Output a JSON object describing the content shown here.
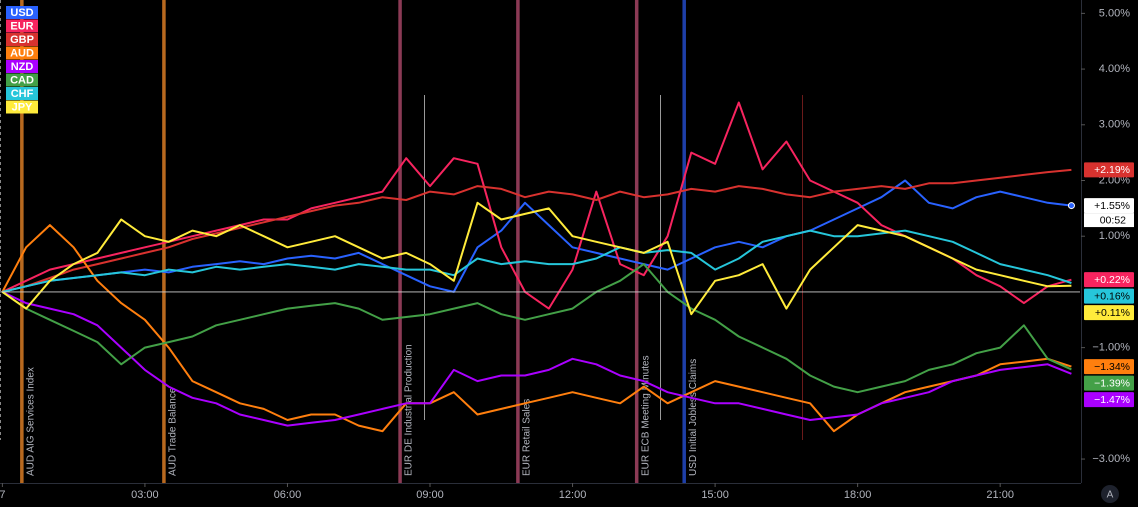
{
  "chart_data": {
    "type": "line",
    "legend": "top-left",
    "grid": false,
    "x": [
      0,
      0.5,
      1,
      1.5,
      2,
      2.5,
      3,
      3.5,
      4,
      4.5,
      5,
      5.5,
      6,
      6.5,
      7,
      7.5,
      8,
      8.5,
      9,
      9.5,
      10,
      10.5,
      11,
      11.5,
      12,
      12.5,
      13,
      13.5,
      14,
      14.5,
      15,
      15.5,
      16,
      16.5,
      17,
      17.5,
      18,
      18.5,
      19,
      19.5,
      20,
      20.5,
      21,
      21.5,
      22,
      22.5
    ],
    "xlim": [
      -0.05,
      22.68
    ],
    "xticks": [
      {
        "value": 0,
        "label": "7"
      },
      {
        "value": 3,
        "label": "03:00"
      },
      {
        "value": 6,
        "label": "06:00"
      },
      {
        "value": 9,
        "label": "09:00"
      },
      {
        "value": 12,
        "label": "12:00"
      },
      {
        "value": 15,
        "label": "15:00"
      },
      {
        "value": 18,
        "label": "18:00"
      },
      {
        "value": 21,
        "label": "21:00"
      }
    ],
    "ylim": [
      -3.43,
      5.24
    ],
    "yticks": [
      {
        "value": 5,
        "label": "5.00%"
      },
      {
        "value": 4,
        "label": "4.00%"
      },
      {
        "value": 3,
        "label": "3.00%"
      },
      {
        "value": 2,
        "label": "2.00%"
      },
      {
        "value": 1,
        "label": "1.00%"
      },
      {
        "value": -1,
        "label": "−1.00%"
      },
      {
        "value": -3,
        "label": "−3.00%"
      }
    ],
    "series": [
      {
        "name": "USD",
        "color": "#2962ff",
        "end_label": "+1.55%",
        "countdown": "00:52",
        "values": [
          0,
          0.1,
          0.2,
          0.25,
          0.3,
          0.35,
          0.4,
          0.35,
          0.45,
          0.5,
          0.55,
          0.5,
          0.6,
          0.65,
          0.6,
          0.7,
          0.5,
          0.3,
          0.1,
          0,
          0.8,
          1.1,
          1.6,
          1.2,
          0.8,
          0.7,
          0.6,
          0.5,
          0.4,
          0.6,
          0.8,
          0.9,
          0.8,
          1.0,
          1.1,
          1.3,
          1.5,
          1.7,
          2.0,
          1.6,
          1.5,
          1.7,
          1.8,
          1.7,
          1.6,
          1.55
        ]
      },
      {
        "name": "EUR",
        "color": "#f7245f",
        "end_label": "+0.22%",
        "values": [
          0,
          0.2,
          0.4,
          0.5,
          0.6,
          0.7,
          0.8,
          0.9,
          1.0,
          1.1,
          1.2,
          1.3,
          1.3,
          1.5,
          1.6,
          1.7,
          1.8,
          2.4,
          1.9,
          2.4,
          2.3,
          0.8,
          0,
          -0.3,
          0.4,
          1.8,
          0.5,
          0.3,
          1.0,
          2.5,
          2.3,
          3.4,
          2.2,
          2.7,
          2.0,
          1.8,
          1.6,
          1.2,
          1.0,
          0.8,
          0.6,
          0.3,
          0.1,
          -0.2,
          0.1,
          0.22
        ]
      },
      {
        "name": "GBP",
        "color": "#d8322f",
        "end_label": "+2.19%",
        "values": [
          0,
          0.1,
          0.25,
          0.4,
          0.5,
          0.6,
          0.7,
          0.8,
          0.95,
          1.05,
          1.15,
          1.25,
          1.35,
          1.45,
          1.55,
          1.6,
          1.7,
          1.65,
          1.8,
          1.75,
          1.9,
          1.85,
          1.7,
          1.8,
          1.75,
          1.65,
          1.8,
          1.7,
          1.75,
          1.85,
          1.8,
          1.9,
          1.85,
          1.75,
          1.7,
          1.8,
          1.85,
          1.9,
          1.85,
          1.95,
          1.95,
          2.0,
          2.05,
          2.1,
          2.15,
          2.19
        ]
      },
      {
        "name": "AUD",
        "color": "#ff7f0e",
        "end_label": "−1.34%",
        "values": [
          0,
          0.8,
          1.2,
          0.8,
          0.2,
          -0.2,
          -0.5,
          -1.0,
          -1.6,
          -1.8,
          -2.0,
          -2.1,
          -2.3,
          -2.2,
          -2.2,
          -2.4,
          -2.5,
          -2.0,
          -2.0,
          -1.8,
          -2.2,
          -2.1,
          -2.0,
          -1.9,
          -1.8,
          -1.9,
          -2.0,
          -1.7,
          -2.0,
          -1.8,
          -1.6,
          -1.7,
          -1.8,
          -1.9,
          -2.0,
          -2.5,
          -2.2,
          -2.0,
          -1.8,
          -1.7,
          -1.6,
          -1.5,
          -1.3,
          -1.25,
          -1.2,
          -1.34
        ]
      },
      {
        "name": "NZD",
        "color": "#aa00ff",
        "end_label": "−1.47%",
        "values": [
          0,
          -0.2,
          -0.3,
          -0.4,
          -0.6,
          -1.0,
          -1.4,
          -1.7,
          -1.9,
          -2.0,
          -2.2,
          -2.3,
          -2.4,
          -2.35,
          -2.3,
          -2.2,
          -2.1,
          -2.0,
          -2.0,
          -1.4,
          -1.6,
          -1.5,
          -1.5,
          -1.4,
          -1.2,
          -1.3,
          -1.5,
          -1.6,
          -1.8,
          -1.9,
          -2.0,
          -2.0,
          -2.1,
          -2.2,
          -2.3,
          -2.25,
          -2.2,
          -2.0,
          -1.9,
          -1.8,
          -1.6,
          -1.5,
          -1.4,
          -1.35,
          -1.3,
          -1.47
        ]
      },
      {
        "name": "CAD",
        "color": "#43a047",
        "end_label": "−1.39%",
        "values": [
          0,
          -0.3,
          -0.5,
          -0.7,
          -0.9,
          -1.3,
          -1.0,
          -0.9,
          -0.8,
          -0.6,
          -0.5,
          -0.4,
          -0.3,
          -0.25,
          -0.2,
          -0.3,
          -0.5,
          -0.45,
          -0.4,
          -0.3,
          -0.2,
          -0.4,
          -0.5,
          -0.4,
          -0.3,
          0,
          0.2,
          0.5,
          0,
          -0.3,
          -0.5,
          -0.8,
          -1.0,
          -1.2,
          -1.5,
          -1.7,
          -1.8,
          -1.7,
          -1.6,
          -1.4,
          -1.3,
          -1.1,
          -1.0,
          -0.6,
          -1.2,
          -1.39
        ]
      },
      {
        "name": "CHF",
        "color": "#26c6da",
        "end_label": "+0.16%",
        "values": [
          0,
          0.1,
          0.2,
          0.25,
          0.3,
          0.35,
          0.3,
          0.4,
          0.35,
          0.45,
          0.4,
          0.45,
          0.5,
          0.45,
          0.4,
          0.5,
          0.45,
          0.4,
          0.4,
          0.3,
          0.6,
          0.5,
          0.55,
          0.5,
          0.5,
          0.6,
          0.8,
          0.7,
          0.75,
          0.7,
          0.4,
          0.6,
          0.9,
          1.0,
          1.1,
          1.0,
          1.0,
          1.05,
          1.1,
          1.0,
          0.9,
          0.7,
          0.5,
          0.4,
          0.3,
          0.16
        ]
      },
      {
        "name": "JPY",
        "color": "#ffeb3b",
        "end_label": "+0.11%",
        "values": [
          0,
          -0.3,
          0.2,
          0.5,
          0.7,
          1.3,
          1.0,
          0.9,
          1.1,
          1.0,
          1.2,
          1.0,
          0.8,
          0.9,
          1.0,
          0.8,
          0.6,
          0.7,
          0.5,
          0.2,
          1.6,
          1.3,
          1.4,
          1.5,
          1.0,
          0.9,
          0.8,
          0.7,
          0.9,
          -0.4,
          0.2,
          0.3,
          0.5,
          -0.3,
          0.4,
          0.8,
          1.2,
          1.1,
          1.0,
          0.8,
          0.6,
          0.4,
          0.3,
          0.2,
          0.1,
          0.11
        ]
      }
    ],
    "events": [
      {
        "x": 0.41,
        "label": "AUD AIG Services Index",
        "color": "#b8691f"
      },
      {
        "x": 3.4,
        "label": "AUD Trade Balance",
        "color": "#b8691f"
      },
      {
        "x": 8.37,
        "label": "EUR DE Industrial Production",
        "color": "#8c3a55"
      },
      {
        "x": 10.85,
        "label": "EUR Retail Sales",
        "color": "#8c3a55"
      },
      {
        "x": 13.35,
        "label": "EUR ECB Meeting Minutes",
        "color": "#8c3a55"
      },
      {
        "x": 14.35,
        "label": "USD Initial Jobless Claims",
        "color": "#1e3fa8"
      }
    ],
    "scale_button": "A"
  }
}
